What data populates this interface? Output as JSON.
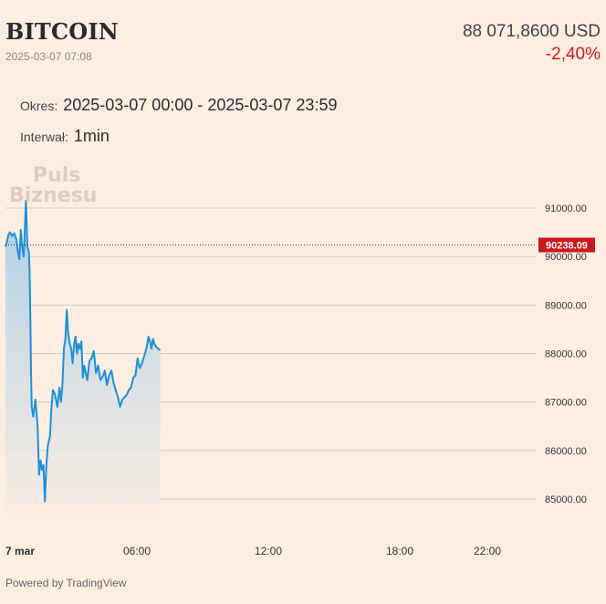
{
  "header": {
    "title": "BITCOIN",
    "datetime": "2025-03-07 07:08",
    "price": "88 071,8600 USD",
    "change": "-2,40%"
  },
  "info": {
    "period_label": "Okres:",
    "period_value": "2025-03-07 00:00 - 2025-03-07 23:59",
    "interval_label": "Interwał:",
    "interval_value": "1min"
  },
  "watermark": {
    "line1": "Puls",
    "line2": "Biznesu"
  },
  "footer": {
    "powered_by": "Powered by TradingView"
  },
  "colors": {
    "background": "#fdeee2",
    "line": "#1e90d8",
    "area_top": "#a9cfe6",
    "area_bottom": "#fdeee2",
    "price_marker": "#c8191c",
    "negative": "#d0191c"
  },
  "chart_data": {
    "type": "area",
    "title": "",
    "xlabel": "",
    "ylabel": "",
    "x_unit": "minutes since 00:00, 2025-03-07",
    "ylim": [
      84300,
      91800
    ],
    "xlim": [
      0,
      1439
    ],
    "y_ticks": [
      {
        "value": 85000,
        "label": "85000.00"
      },
      {
        "value": 86000,
        "label": "86000.00"
      },
      {
        "value": 87000,
        "label": "87000.00"
      },
      {
        "value": 88000,
        "label": "88000.00"
      },
      {
        "value": 89000,
        "label": "89000.00"
      },
      {
        "value": 90000,
        "label": "90000.00"
      },
      {
        "value": 91000,
        "label": "91000.00"
      }
    ],
    "x_ticks": [
      {
        "value": 0,
        "label": "7 mar",
        "bold": true
      },
      {
        "value": 360,
        "label": "06:00",
        "bold": false
      },
      {
        "value": 720,
        "label": "12:00",
        "bold": false
      },
      {
        "value": 1080,
        "label": "18:00",
        "bold": false
      },
      {
        "value": 1320,
        "label": "22:00",
        "bold": false
      }
    ],
    "reference_line": {
      "value": 90238.09,
      "label": "90238.09"
    },
    "grid": true,
    "series": [
      {
        "x": [
          0,
          4,
          8,
          12,
          18,
          24,
          30,
          34,
          38,
          42,
          46,
          50,
          56,
          60,
          64,
          66,
          68,
          70,
          72,
          76,
          82,
          88,
          92,
          96,
          100,
          104,
          108,
          112,
          116,
          122,
          126,
          130,
          136,
          142,
          148,
          152,
          156,
          160,
          164,
          168,
          172,
          176,
          180,
          184,
          188,
          192,
          196,
          200,
          204,
          208,
          212,
          216,
          220,
          224,
          230,
          236,
          242,
          248,
          254,
          260,
          264,
          268,
          272,
          278,
          284,
          290,
          296,
          302,
          308,
          314,
          320,
          326,
          332,
          338,
          344,
          350,
          356,
          362,
          368,
          374,
          380,
          386,
          392,
          396,
          400,
          404,
          408,
          412,
          418,
          424
        ],
        "values": [
          90200,
          90300,
          90450,
          90500,
          90420,
          90480,
          90350,
          90100,
          89950,
          90550,
          90180,
          90000,
          91150,
          90200,
          90100,
          89700,
          88800,
          87600,
          86900,
          86700,
          87050,
          86500,
          85500,
          85800,
          85600,
          85700,
          84950,
          85700,
          86100,
          86300,
          86900,
          87250,
          87150,
          86900,
          87300,
          87000,
          87350,
          88100,
          88300,
          88900,
          88400,
          88200,
          88100,
          87800,
          88200,
          88350,
          88000,
          88200,
          88100,
          88250,
          87500,
          87750,
          87600,
          87450,
          87850,
          87900,
          88050,
          87600,
          87750,
          87450,
          87500,
          87550,
          87650,
          87350,
          87550,
          87650,
          87400,
          87250,
          87100,
          86900,
          87050,
          87100,
          87150,
          87250,
          87300,
          87500,
          87550,
          87900,
          87700,
          87800,
          87950,
          88100,
          88350,
          88250,
          88100,
          88300,
          88200,
          88150,
          88100,
          88072
        ]
      }
    ]
  }
}
